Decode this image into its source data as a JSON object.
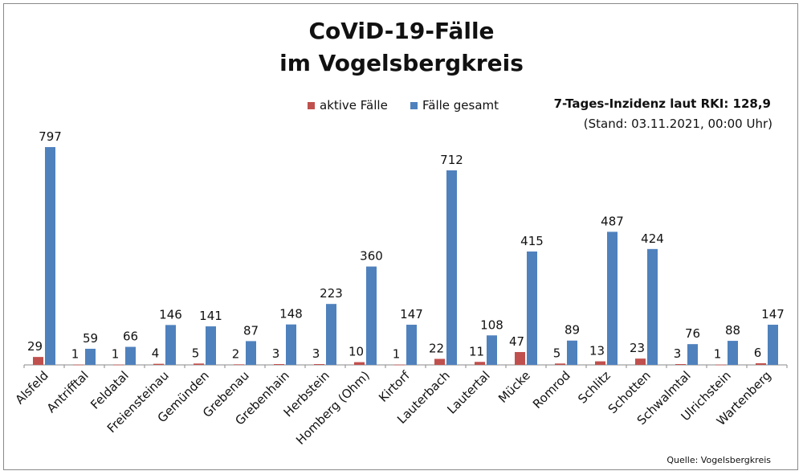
{
  "chart_data": {
    "type": "bar",
    "title": "CoViD-19-Fälle",
    "subtitle": "im Vogelsbergkreis",
    "categories": [
      "Alsfeld",
      "Antrifftal",
      "Feldatal",
      "Freiensteinau",
      "Gemünden",
      "Grebenau",
      "Grebenhain",
      "Herbstein",
      "Homberg (Ohm)",
      "Kirtorf",
      "Lauterbach",
      "Lautertal",
      "Mücke",
      "Romrod",
      "Schlitz",
      "Schotten",
      "Schwalmtal",
      "Ulrichstein",
      "Wartenberg"
    ],
    "series": [
      {
        "name": "aktive Fälle",
        "color": "#c0504d",
        "values": [
          29,
          1,
          1,
          4,
          5,
          2,
          3,
          3,
          10,
          1,
          22,
          11,
          47,
          5,
          13,
          23,
          3,
          1,
          6
        ]
      },
      {
        "name": "Fälle gesamt",
        "color": "#4f81bd",
        "values": [
          797,
          59,
          66,
          146,
          141,
          87,
          148,
          223,
          360,
          147,
          712,
          108,
          415,
          89,
          487,
          424,
          76,
          88,
          147
        ]
      }
    ],
    "ylim": [
      0,
      850
    ],
    "legend": "top-center",
    "grid": false
  },
  "info": {
    "incidence": "7-Tages-Inzidenz laut RKI: 128,9",
    "stand": "(Stand: 03.11.2021, 00:00 Uhr)"
  },
  "source": "Quelle: Vogelsbergkreis"
}
